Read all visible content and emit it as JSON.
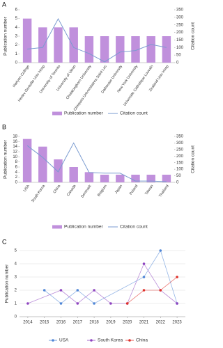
{
  "chart_data": [
    {
      "type": "combo",
      "panel": "A",
      "categories": [
        "Harlyen College",
        "Herlev Gentofte Univ Hosp",
        "University of Toronto",
        "University of Ulsan",
        "Chulalongkorn University",
        "Cliniques Universitaires Saint Luc",
        "Dalhousie University",
        "New York University",
        "Universite Catholique Louvain",
        "Zealand Univ Hosp"
      ],
      "ylabel": "Publication number",
      "y2label": "Citation count",
      "ylim": [
        0,
        6
      ],
      "yticks": [
        0,
        1,
        2,
        3,
        4,
        5,
        6
      ],
      "y2lim": [
        0,
        350
      ],
      "y2ticks": [
        0,
        50,
        100,
        150,
        200,
        250,
        300,
        350
      ],
      "series": [
        {
          "name": "Publication number",
          "color": "#c090dc",
          "values": [
            5,
            4,
            4,
            4,
            3,
            3,
            3,
            3,
            3,
            3
          ]
        },
        {
          "name": "Citation count",
          "color": "#7a9bd0",
          "axis": "y2",
          "values": [
            90,
            100,
            290,
            100,
            60,
            5,
            70,
            80,
            120,
            100
          ]
        }
      ]
    },
    {
      "type": "combo",
      "panel": "B",
      "categories": [
        "USA",
        "South Korea",
        "China",
        "Canada",
        "Denmark",
        "Belgium",
        "Japan",
        "Poland",
        "Taiwan",
        "Thailand"
      ],
      "ylabel": "Publication number",
      "y2label": "Citation count",
      "ylim": [
        0,
        18
      ],
      "yticks": [
        0,
        2,
        4,
        6,
        8,
        10,
        12,
        14,
        16,
        18
      ],
      "y2lim": [
        0,
        350
      ],
      "y2ticks": [
        0,
        50,
        100,
        150,
        200,
        250,
        300,
        350
      ],
      "series": [
        {
          "name": "Publication number",
          "color": "#c090dc",
          "values": [
            17,
            14,
            9,
            6,
            4,
            3,
            3,
            3,
            3,
            3
          ]
        },
        {
          "name": "Citation count",
          "color": "#7a9bd0",
          "axis": "y2",
          "values": [
            280,
            190,
            80,
            300,
            75,
            70,
            70,
            10,
            10,
            5
          ]
        }
      ]
    },
    {
      "type": "line",
      "panel": "C",
      "ylabel": "Publication number",
      "grid": true,
      "xlim": [
        2013.5,
        2023.5
      ],
      "xticks": [
        2014,
        2015,
        2016,
        2017,
        2018,
        2019,
        2020,
        2021,
        2022,
        2023
      ],
      "ylim": [
        0,
        5
      ],
      "yticks": [
        0,
        1,
        2,
        3,
        4,
        5
      ],
      "series": [
        {
          "name": "USA",
          "color": "#4f86d6",
          "x": [
            2015,
            2016,
            2017,
            2018,
            2021,
            2022,
            2023
          ],
          "values": [
            2,
            1,
            2,
            1,
            3,
            5,
            1
          ]
        },
        {
          "name": "South Korea",
          "color": "#8e44c0",
          "x": [
            2014,
            2016,
            2017,
            2018,
            2019,
            2020,
            2021,
            2022,
            2023
          ],
          "values": [
            1,
            2,
            1,
            2,
            1,
            1,
            4,
            2,
            1
          ]
        },
        {
          "name": "China",
          "color": "#e0302a",
          "x": [
            2020,
            2021,
            2022,
            2023
          ],
          "values": [
            1,
            2,
            2,
            3
          ]
        }
      ]
    }
  ]
}
